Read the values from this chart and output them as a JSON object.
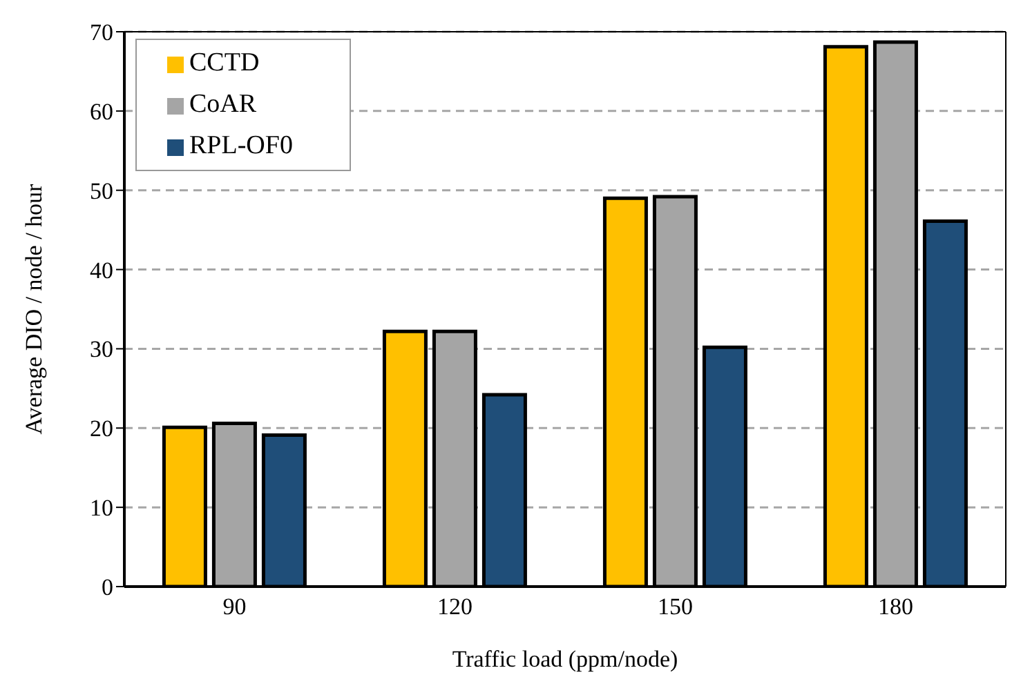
{
  "chart_data": {
    "type": "bar",
    "xlabel": "Traffic load (ppm/node)",
    "ylabel": "Average DIO / node / hour",
    "categories": [
      "90",
      "120",
      "150",
      "180"
    ],
    "series": [
      {
        "name": "CCTD",
        "color": "#ffc000",
        "values": [
          20.1,
          32.2,
          49.0,
          68.1
        ]
      },
      {
        "name": "CoAR",
        "color": "#a5a5a5",
        "values": [
          20.6,
          32.2,
          49.2,
          68.7
        ]
      },
      {
        "name": "RPL-OF0",
        "color": "#1f4e79",
        "values": [
          19.1,
          24.2,
          30.2,
          46.1
        ]
      }
    ],
    "ylim": [
      0,
      70
    ],
    "yticks": [
      0,
      10,
      20,
      30,
      40,
      50,
      60,
      70
    ],
    "grid": "y",
    "legend": "top left"
  }
}
